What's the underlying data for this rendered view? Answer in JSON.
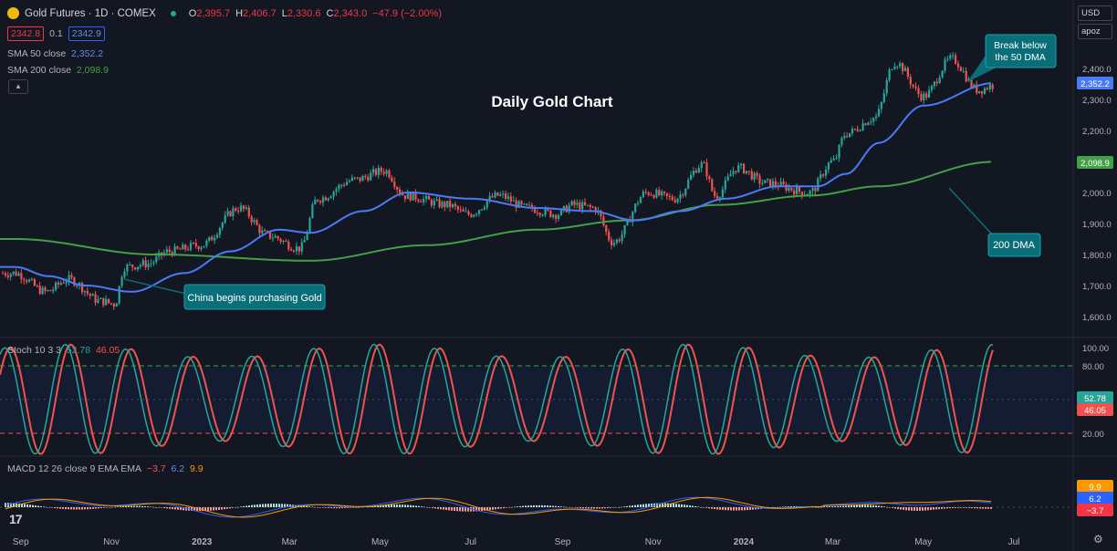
{
  "header": {
    "symbol": "Gold Futures · 1D · COMEX",
    "o_label": "O",
    "o_val": "2,395.7",
    "h_label": "H",
    "h_val": "2,406.7",
    "l_label": "L",
    "l_val": "2,330.6",
    "c_label": "C",
    "c_val": "2,343.0",
    "change": "−47.9 (−2.00%)",
    "bid": "2342.8",
    "spread": "0.1",
    "ask": "2342.9",
    "collapse_icon": "chevron-up-icon"
  },
  "currency": {
    "code": "USD",
    "scale": "apoz"
  },
  "indicators": {
    "sma50": {
      "label": "SMA 50 close",
      "value": "2,352.2",
      "color": "#4a7bf7"
    },
    "sma200": {
      "label": "SMA 200 close",
      "value": "2,098.9",
      "color": "#43a047"
    },
    "stoch": {
      "label": "Stoch 10 3 3",
      "k": "52.78",
      "d": "46.05"
    },
    "macd": {
      "label": "MACD 12 26 close 9 EMA EMA",
      "hist": "−3.7",
      "macd": "6.2",
      "signal": "9.9"
    }
  },
  "colors": {
    "bg": "#131722",
    "up": "#26a69a",
    "down": "#ef5350",
    "sma50": "#4a7bf7",
    "sma200": "#43a047",
    "annotation": "#0a6e78"
  },
  "chart_data": {
    "type": "candlestick",
    "title": "Daily Gold Chart",
    "x_ticks": [
      "Sep",
      "Nov",
      "2023",
      "Mar",
      "May",
      "Jul",
      "Sep",
      "Nov",
      "2024",
      "Mar",
      "May",
      "Jul"
    ],
    "price_axis": {
      "ticks": [
        "2,400.0",
        "2,300.0",
        "2,200.0",
        "2,100.0",
        "2,000.0",
        "1,900.0",
        "1,800.0",
        "1,700.0",
        "1,600.0"
      ],
      "range": [
        1570,
        2510
      ]
    },
    "price_path": [
      [
        "2022-08-28",
        1740
      ],
      [
        "2022-09-18",
        1680
      ],
      [
        "2022-10-03",
        1720
      ],
      [
        "2022-10-25",
        1650
      ],
      [
        "2022-11-03",
        1640
      ],
      [
        "2022-11-10",
        1760
      ],
      [
        "2022-11-25",
        1770
      ],
      [
        "2022-12-10",
        1810
      ],
      [
        "2022-12-31",
        1830
      ],
      [
        "2023-01-26",
        1950
      ],
      [
        "2023-02-15",
        1860
      ],
      [
        "2023-03-08",
        1820
      ],
      [
        "2023-03-20",
        1980
      ],
      [
        "2023-04-13",
        2040
      ],
      [
        "2023-05-04",
        2070
      ],
      [
        "2023-05-18",
        1990
      ],
      [
        "2023-06-15",
        1960
      ],
      [
        "2023-06-29",
        1930
      ],
      [
        "2023-07-20",
        1990
      ],
      [
        "2023-08-08",
        1950
      ],
      [
        "2023-08-28",
        1930
      ],
      [
        "2023-09-08",
        1960
      ],
      [
        "2023-09-22",
        1950
      ],
      [
        "2023-10-05",
        1840
      ],
      [
        "2023-10-28",
        2000
      ],
      [
        "2023-11-15",
        1980
      ],
      [
        "2023-12-04",
        2090
      ],
      [
        "2023-12-13",
        1990
      ],
      [
        "2023-12-28",
        2080
      ],
      [
        "2024-01-16",
        2030
      ],
      [
        "2024-02-14",
        2000
      ],
      [
        "2024-03-01",
        2100
      ],
      [
        "2024-03-10",
        2190
      ],
      [
        "2024-03-29",
        2240
      ],
      [
        "2024-04-12",
        2420
      ],
      [
        "2024-05-01",
        2310
      ],
      [
        "2024-05-20",
        2430
      ],
      [
        "2024-06-07",
        2330
      ],
      [
        "2024-06-17",
        2345
      ]
    ],
    "sma50_path": [
      [
        "2022-08-28",
        1760
      ],
      [
        "2022-09-20",
        1730
      ],
      [
        "2022-10-15",
        1700
      ],
      [
        "2022-11-15",
        1680
      ],
      [
        "2022-12-20",
        1740
      ],
      [
        "2023-01-20",
        1810
      ],
      [
        "2023-02-22",
        1880
      ],
      [
        "2023-03-15",
        1870
      ],
      [
        "2023-04-20",
        1940
      ],
      [
        "2023-05-20",
        2000
      ],
      [
        "2023-07-01",
        1980
      ],
      [
        "2023-08-15",
        1950
      ],
      [
        "2023-09-20",
        1940
      ],
      [
        "2023-10-20",
        1910
      ],
      [
        "2023-11-20",
        1940
      ],
      [
        "2023-12-20",
        1980
      ],
      [
        "2024-01-25",
        2020
      ],
      [
        "2024-02-20",
        2020
      ],
      [
        "2024-03-10",
        2060
      ],
      [
        "2024-04-01",
        2160
      ],
      [
        "2024-05-01",
        2280
      ],
      [
        "2024-06-17",
        2352.2
      ]
    ],
    "sma200_path": [
      [
        "2022-08-28",
        1850
      ],
      [
        "2022-12-01",
        1800
      ],
      [
        "2023-03-15",
        1780
      ],
      [
        "2023-06-01",
        1830
      ],
      [
        "2023-08-15",
        1880
      ],
      [
        "2023-10-15",
        1910
      ],
      [
        "2023-12-15",
        1960
      ],
      [
        "2024-02-15",
        1990
      ],
      [
        "2024-04-01",
        2020
      ],
      [
        "2024-06-17",
        2098.9
      ]
    ],
    "stoch_axis": {
      "ticks": [
        "100.00",
        "80.00",
        "20.00"
      ],
      "range": [
        0,
        100
      ],
      "bands": [
        80,
        20
      ]
    },
    "stoch_cycle_peaks_months": [
      "2022-09",
      "2022-11",
      "2023-01",
      "2023-04",
      "2023-06",
      "2023-08",
      "2023-10",
      "2023-12",
      "2024-01",
      "2024-03",
      "2024-04",
      "2024-06"
    ],
    "macd_last": {
      "hist": -3.7,
      "macd": 6.2,
      "signal": 9.9
    },
    "annotations": [
      {
        "text_lines": [
          "China begins purchasing Gold"
        ],
        "date": "2022-11-10",
        "price": 1720
      },
      {
        "text_lines": [
          "Break below",
          "the 50 DMA"
        ],
        "date": "2024-06-17",
        "price": 2350
      },
      {
        "text_lines": [
          "200 DMA"
        ],
        "date": "2024-04-25",
        "price": 2025
      }
    ],
    "last_labels": {
      "price": "2,352.2",
      "sma200": "2,098.9",
      "stoch_k": "52.78",
      "stoch_d": "46.05"
    }
  }
}
